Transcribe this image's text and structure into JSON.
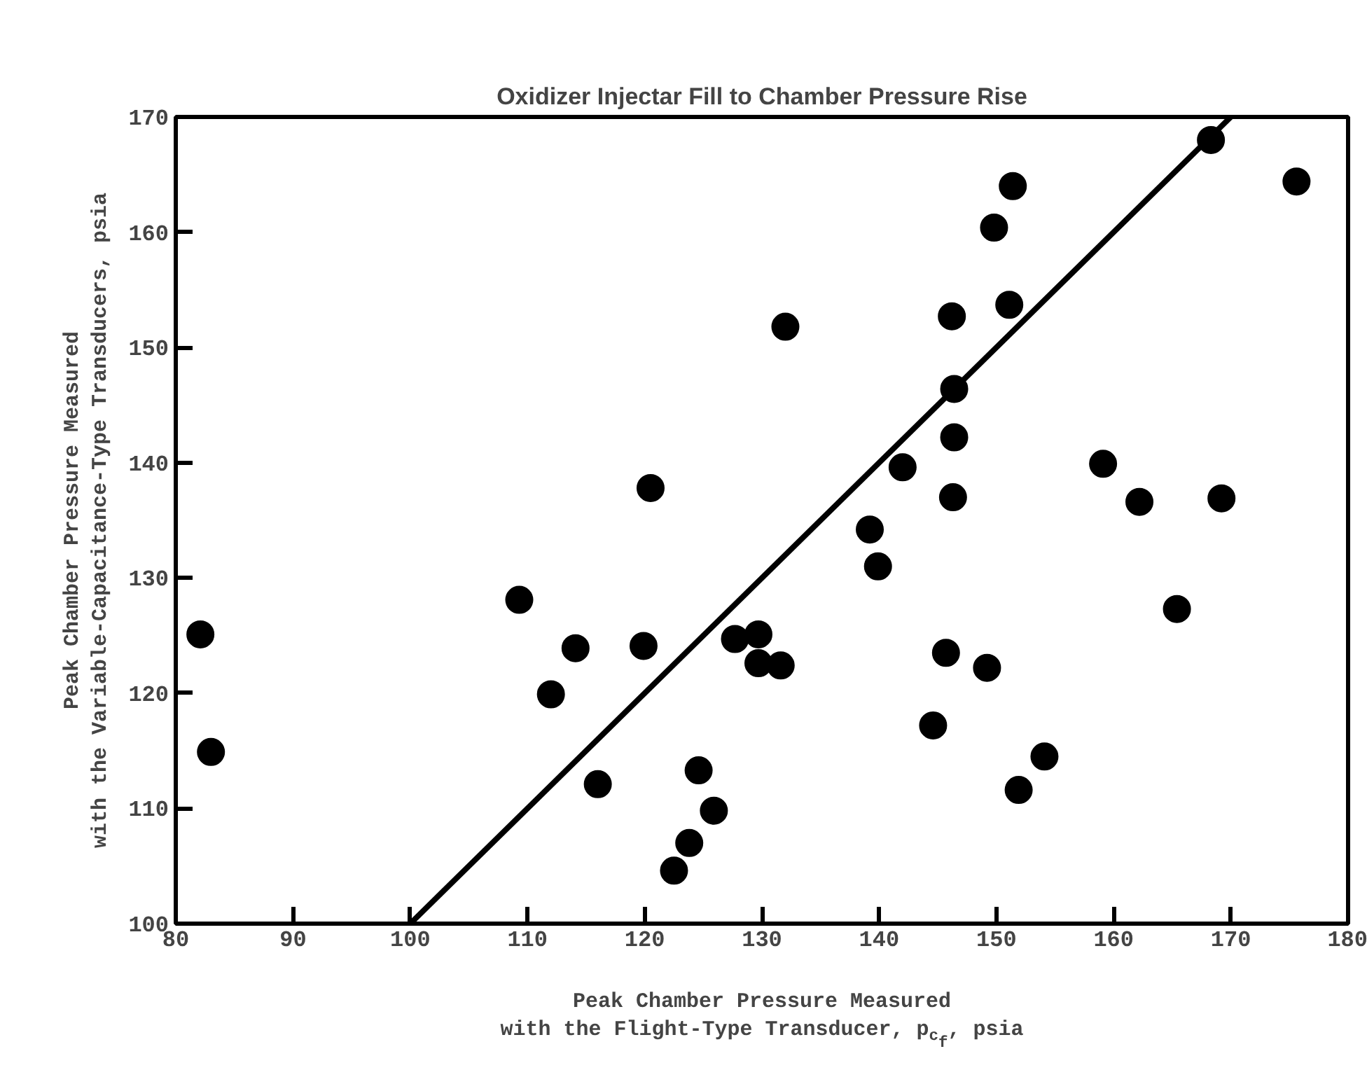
{
  "chart_data": {
    "type": "scatter",
    "title": "Oxidizer Injectar Fill to Chamber Pressure Rise",
    "xlabel": "Peak Chamber Pressure Measured\nwith the Flight-Type Transducer, p$_{c}$$_{f}$, psia",
    "ylabel": "Peak Chamber Pressure Measured\nwith the Variable-Capacitance-Type Transducers, psia",
    "xlim": [
      80,
      180
    ],
    "xticks": [
      80,
      90,
      100,
      110,
      120,
      130,
      140,
      150,
      160,
      170,
      180
    ],
    "ylim": [
      100,
      170
    ],
    "yticks": [
      100,
      110,
      120,
      130,
      140,
      150,
      160,
      170
    ],
    "marker": "circle",
    "series": [
      {
        "color": "#000000",
        "x": [
          82.1,
          83.0,
          109.3,
          114.1,
          112.0,
          119.9,
          120.5,
          116.0,
          124.6,
          125.9,
          123.8,
          122.5,
          127.7,
          129.7,
          129.7,
          131.6,
          132.0,
          151.4,
          149.8,
          151.1,
          146.2,
          146.4,
          146.4,
          142.0,
          146.3,
          139.2,
          139.9,
          145.7,
          149.2,
          144.6,
          154.1,
          151.9,
          159.1,
          162.2,
          169.2,
          165.4,
          168.3,
          175.6
        ],
        "values": [
          125.1,
          114.9,
          128.1,
          123.9,
          119.9,
          124.1,
          137.8,
          112.1,
          113.3,
          109.8,
          107.0,
          104.6,
          124.7,
          125.1,
          122.6,
          122.4,
          151.8,
          164.0,
          160.4,
          153.7,
          152.7,
          146.4,
          142.2,
          139.6,
          137.0,
          134.2,
          131.0,
          123.5,
          122.2,
          117.2,
          114.5,
          111.6,
          139.9,
          136.6,
          136.9,
          127.3,
          168.0,
          164.4
        ]
      },
      {
        "type": "line",
        "color": "#000000",
        "x": [
          100,
          170
        ],
        "values": [
          100,
          170
        ],
        "line_style": "solid",
        "marker": "none"
      }
    ]
  }
}
